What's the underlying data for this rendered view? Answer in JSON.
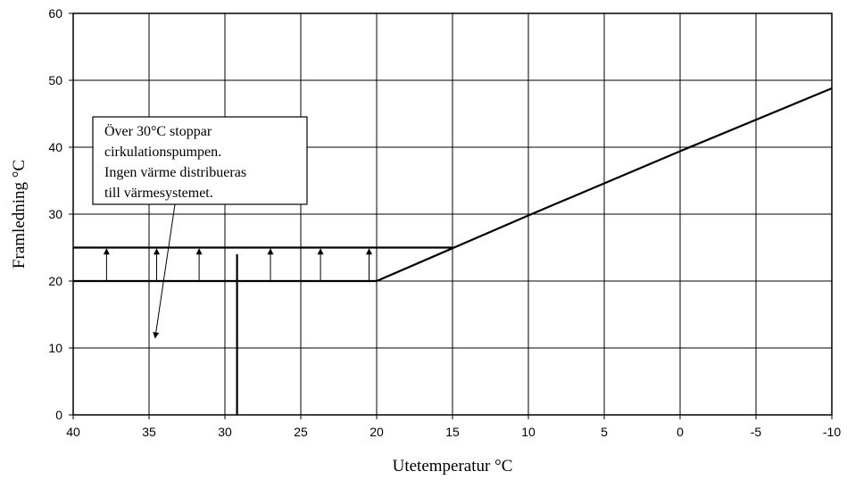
{
  "chart_data": {
    "type": "line",
    "title": "",
    "xlabel": "Utetemperatur °C",
    "ylabel": "Framledning °C",
    "xlim": [
      40,
      -10
    ],
    "ylim": [
      0,
      60
    ],
    "x_reversed": true,
    "grid": true,
    "x_ticks": [
      "40",
      "35",
      "30",
      "25",
      "20",
      "15",
      "10",
      "5",
      "0",
      "-5",
      "-10"
    ],
    "y_ticks": [
      "0",
      "10",
      "20",
      "30",
      "40",
      "50",
      "60"
    ],
    "series": [
      {
        "x": [
          40,
          20,
          10,
          0,
          -10
        ],
        "y": [
          20,
          20,
          29.8,
          39.4,
          48.8
        ]
      },
      {
        "x": [
          40,
          15
        ],
        "y": [
          25,
          25
        ]
      }
    ],
    "cutoff_x": 29.2,
    "cutoff_y_top": 24,
    "up_arrows_x": [
      37.8,
      34.5,
      31.7,
      27,
      23.7,
      20.5
    ],
    "up_arrows_y": [
      20,
      24.8
    ],
    "annotation": {
      "lines": [
        "Över 30°C stoppar",
        "cirkulationspumpen.",
        "Ingen värme distribueras",
        "till värmesystemet."
      ],
      "arrow_to": [
        34.6,
        11.5
      ]
    }
  }
}
